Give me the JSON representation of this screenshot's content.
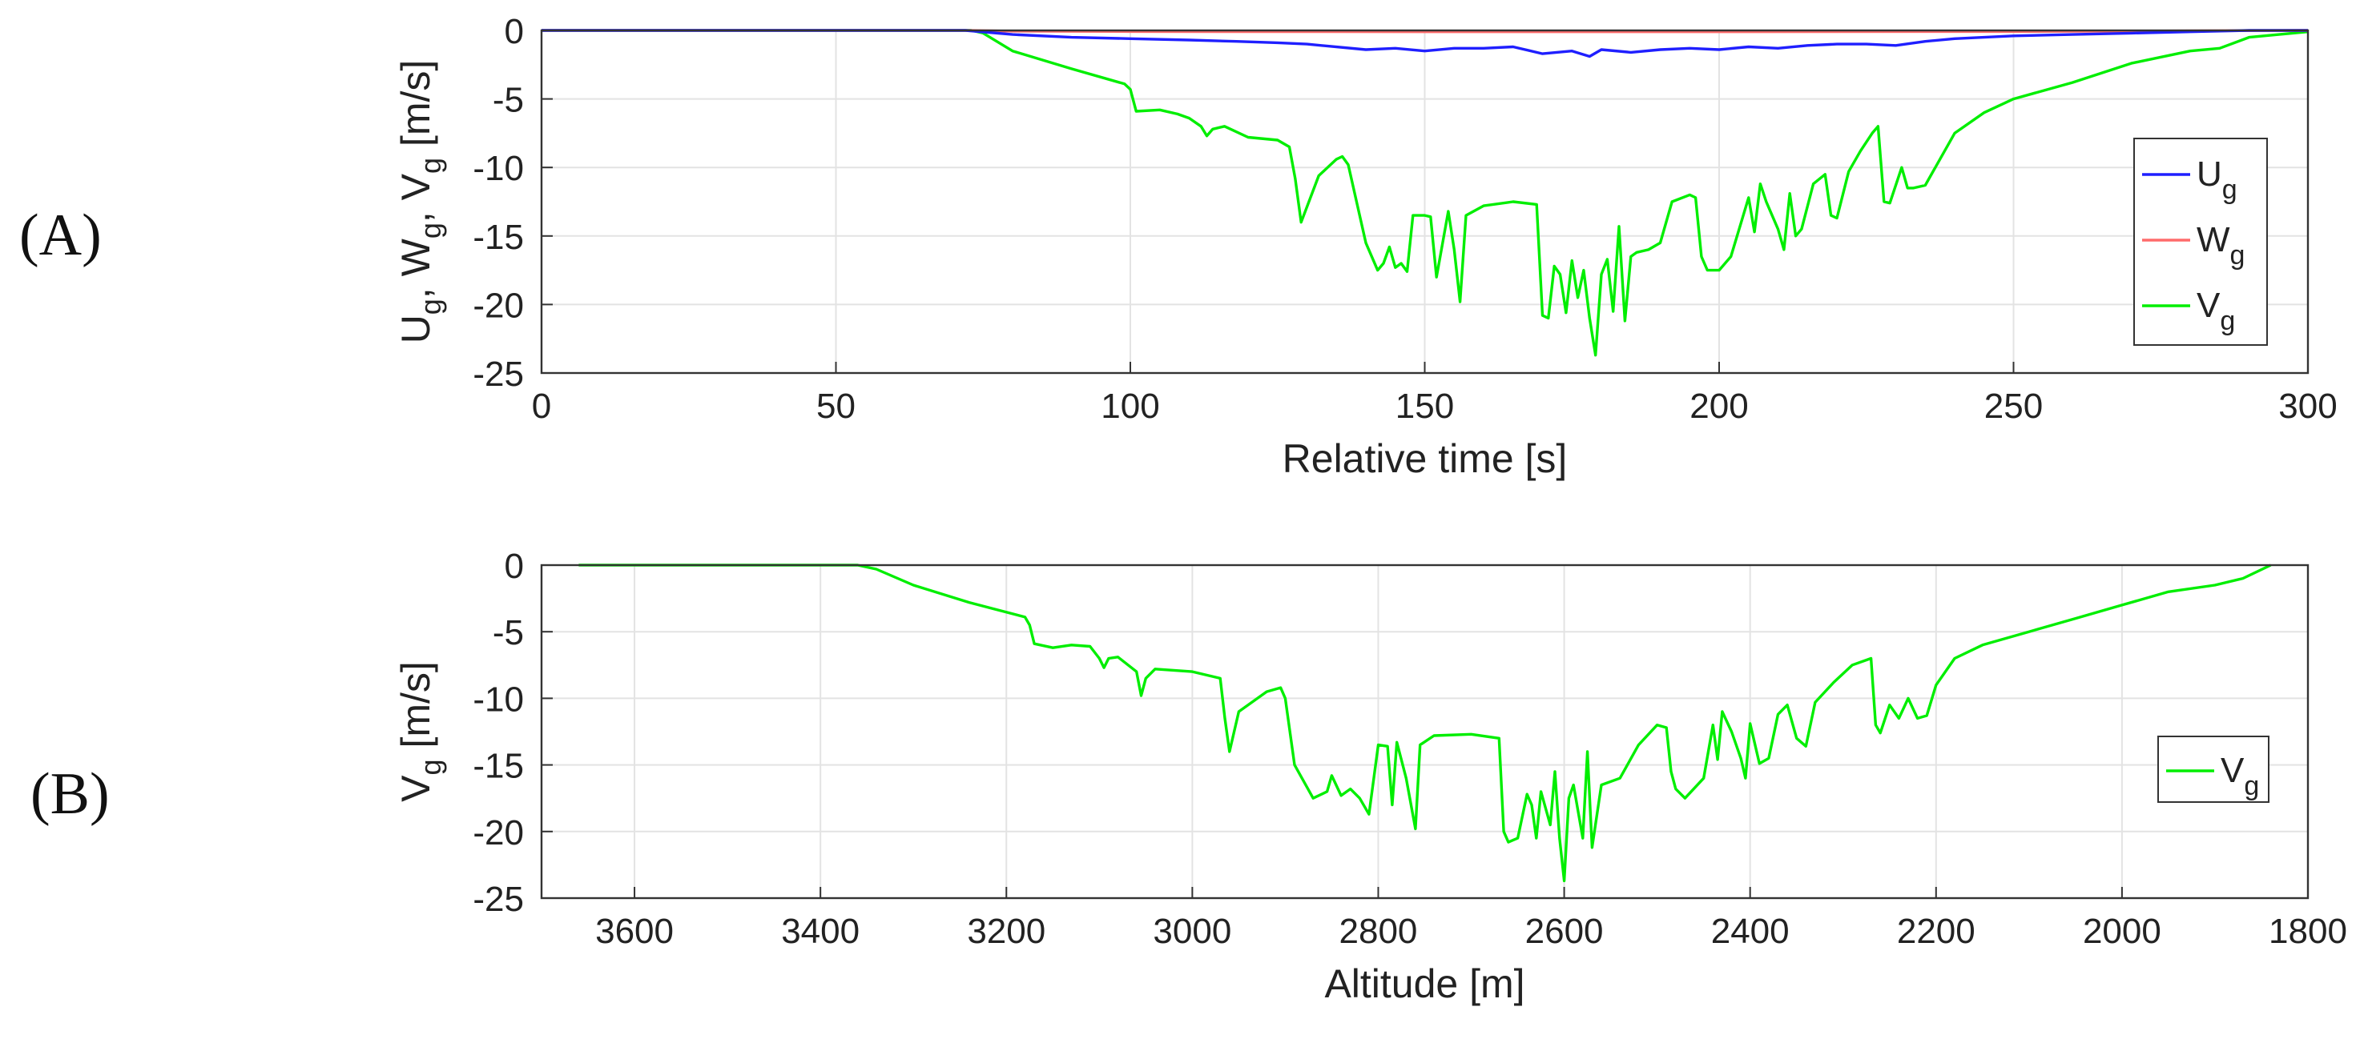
{
  "panels": {
    "a": "(A)",
    "b": "(B)"
  },
  "chart_data": [
    {
      "type": "line",
      "panel": "(A)",
      "xlabel": "Relative time [s]",
      "ylabel_parts": [
        [
          "U",
          "g"
        ],
        [
          "W",
          "g"
        ],
        [
          "V",
          "g"
        ]
      ],
      "ylabel_unit": "[m/s]",
      "xlim": [
        0,
        300
      ],
      "ylim": [
        -25,
        0
      ],
      "xticks": [
        0,
        50,
        100,
        150,
        200,
        250,
        300
      ],
      "yticks": [
        0,
        -5,
        -10,
        -15,
        -20,
        -25
      ],
      "grid": true,
      "legend_position": "right",
      "series": [
        {
          "name": "U",
          "sub": "g",
          "color": "#1f1fff",
          "x": [
            0,
            72,
            80,
            90,
            100,
            110,
            118,
            125,
            130,
            140,
            145,
            150,
            155,
            160,
            165,
            170,
            175,
            178,
            180,
            185,
            190,
            195,
            200,
            205,
            210,
            215,
            220,
            225,
            230,
            235,
            240,
            250,
            260,
            270,
            280,
            290,
            300
          ],
          "y": [
            0,
            0,
            -0.3,
            -0.5,
            -0.6,
            -0.7,
            -0.8,
            -0.9,
            -1.0,
            -1.4,
            -1.3,
            -1.5,
            -1.3,
            -1.3,
            -1.2,
            -1.7,
            -1.5,
            -1.9,
            -1.4,
            -1.6,
            -1.4,
            -1.3,
            -1.4,
            -1.2,
            -1.3,
            -1.1,
            -1.0,
            -1.0,
            -1.1,
            -0.8,
            -0.6,
            -0.4,
            -0.3,
            -0.2,
            -0.1,
            0,
            0
          ]
        },
        {
          "name": "W",
          "sub": "g",
          "color": "#ff6b6b",
          "x": [
            0,
            72,
            80,
            100,
            150,
            200,
            250,
            290,
            300
          ],
          "y": [
            0,
            0,
            -0.05,
            -0.08,
            -0.1,
            -0.1,
            -0.08,
            -0.02,
            0
          ]
        },
        {
          "name": "V",
          "sub": "g",
          "color": "#00ee00",
          "x": [
            0,
            73,
            75,
            80,
            90,
            99,
            100,
            101,
            105,
            108,
            110,
            112,
            113,
            114,
            116,
            120,
            125,
            127,
            128,
            129,
            132,
            135,
            136,
            137,
            140,
            142,
            143,
            144,
            145,
            146,
            147,
            148,
            150,
            151,
            152,
            154,
            155,
            156,
            157,
            160,
            165,
            169,
            170,
            171,
            172,
            173,
            174,
            175,
            176,
            177,
            178,
            179,
            180,
            181,
            182,
            183,
            184,
            185,
            186,
            188,
            190,
            192,
            195,
            196,
            197,
            198,
            200,
            202,
            205,
            206,
            207,
            208,
            210,
            211,
            212,
            213,
            214,
            216,
            218,
            219,
            220,
            222,
            224,
            226,
            227,
            228,
            229,
            231,
            232,
            233,
            235,
            240,
            245,
            250,
            260,
            270,
            280,
            285,
            290,
            300
          ],
          "y": [
            0,
            0,
            -0.2,
            -1.5,
            -2.8,
            -3.9,
            -4.3,
            -5.9,
            -5.8,
            -6.1,
            -6.4,
            -7.0,
            -7.7,
            -7.2,
            -7.0,
            -7.8,
            -8.0,
            -8.5,
            -10.8,
            -14.0,
            -10.6,
            -9.4,
            -9.2,
            -9.8,
            -15.5,
            -17.5,
            -17.0,
            -15.8,
            -17.3,
            -17.0,
            -17.6,
            -13.5,
            -13.5,
            -13.6,
            -18.0,
            -13.2,
            -16.0,
            -19.8,
            -13.5,
            -12.8,
            -12.5,
            -12.7,
            -20.8,
            -21.0,
            -17.2,
            -17.8,
            -20.6,
            -16.8,
            -19.5,
            -17.5,
            -21.0,
            -23.7,
            -17.8,
            -16.7,
            -20.5,
            -14.3,
            -21.2,
            -16.5,
            -16.2,
            -16.0,
            -15.5,
            -12.5,
            -12.0,
            -12.2,
            -16.5,
            -17.5,
            -17.5,
            -16.5,
            -12.2,
            -14.7,
            -11.2,
            -12.5,
            -14.5,
            -16.0,
            -11.9,
            -15.0,
            -14.5,
            -11.2,
            -10.5,
            -13.5,
            -13.7,
            -10.3,
            -8.8,
            -7.5,
            -7.0,
            -12.5,
            -12.6,
            -10.0,
            -11.5,
            -11.5,
            -11.3,
            -7.5,
            -6.0,
            -5.0,
            -3.8,
            -2.4,
            -1.5,
            -1.3,
            -0.5,
            -0.1
          ]
        }
      ]
    },
    {
      "type": "line",
      "panel": "(B)",
      "xlabel": "Altitude [m]",
      "ylabel_parts": [
        [
          "V",
          "g"
        ]
      ],
      "ylabel_unit": "[m/s]",
      "xlim": [
        3700,
        1800
      ],
      "ylim": [
        -25,
        0
      ],
      "xticks": [
        3600,
        3400,
        3200,
        3000,
        2800,
        2600,
        2400,
        2200,
        2000,
        1800
      ],
      "yticks": [
        0,
        -5,
        -10,
        -15,
        -20,
        -25
      ],
      "grid": true,
      "legend_position": "right",
      "series": [
        {
          "name": "V",
          "sub": "g",
          "color": "#00ee00",
          "x": [
            3660,
            3360,
            3340,
            3300,
            3240,
            3180,
            3175,
            3170,
            3150,
            3130,
            3110,
            3100,
            3095,
            3090,
            3080,
            3060,
            3055,
            3050,
            3040,
            3000,
            2970,
            2965,
            2960,
            2950,
            2920,
            2905,
            2900,
            2890,
            2870,
            2855,
            2850,
            2840,
            2830,
            2820,
            2810,
            2800,
            2790,
            2785,
            2780,
            2770,
            2760,
            2755,
            2740,
            2700,
            2670,
            2665,
            2660,
            2650,
            2640,
            2635,
            2630,
            2625,
            2615,
            2610,
            2605,
            2600,
            2595,
            2590,
            2580,
            2575,
            2570,
            2560,
            2540,
            2520,
            2500,
            2490,
            2485,
            2480,
            2470,
            2450,
            2440,
            2435,
            2430,
            2420,
            2410,
            2405,
            2400,
            2390,
            2380,
            2370,
            2360,
            2350,
            2340,
            2330,
            2310,
            2290,
            2270,
            2265,
            2260,
            2250,
            2240,
            2230,
            2220,
            2210,
            2200,
            2180,
            2150,
            2100,
            2050,
            2000,
            1950,
            1900,
            1870,
            1840
          ],
          "y": [
            0,
            0,
            -0.3,
            -1.5,
            -2.8,
            -3.9,
            -4.5,
            -5.9,
            -6.2,
            -6.0,
            -6.1,
            -7.0,
            -7.7,
            -7.0,
            -6.9,
            -8.0,
            -9.8,
            -8.5,
            -7.8,
            -8.0,
            -8.5,
            -11.5,
            -14.0,
            -11.0,
            -9.5,
            -9.2,
            -10.0,
            -15.0,
            -17.5,
            -17.0,
            -15.8,
            -17.3,
            -16.8,
            -17.5,
            -18.7,
            -13.5,
            -13.6,
            -18.0,
            -13.3,
            -16.0,
            -19.8,
            -13.5,
            -12.8,
            -12.7,
            -13.0,
            -20.0,
            -20.8,
            -20.5,
            -17.2,
            -18.0,
            -20.5,
            -17.0,
            -19.5,
            -15.5,
            -20.5,
            -23.7,
            -17.5,
            -16.5,
            -20.5,
            -14.0,
            -21.2,
            -16.5,
            -16.0,
            -13.5,
            -12.0,
            -12.2,
            -15.5,
            -16.8,
            -17.5,
            -16.0,
            -12.0,
            -14.6,
            -11.0,
            -12.5,
            -14.5,
            -16.0,
            -11.9,
            -14.9,
            -14.5,
            -11.2,
            -10.5,
            -13.0,
            -13.6,
            -10.3,
            -8.8,
            -7.5,
            -7.0,
            -12.0,
            -12.6,
            -10.5,
            -11.5,
            -10.0,
            -11.5,
            -11.3,
            -9.0,
            -7.0,
            -6.0,
            -5.0,
            -4.0,
            -3.0,
            -2.0,
            -1.5,
            -1.0,
            0
          ]
        }
      ]
    }
  ]
}
